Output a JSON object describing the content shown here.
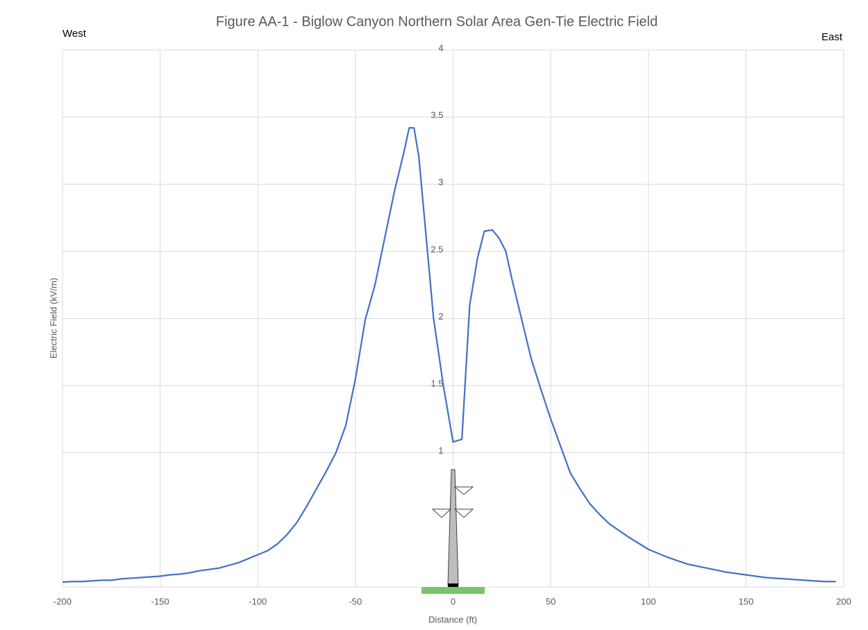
{
  "chart_data": {
    "type": "line",
    "title": "Figure AA-1 - Biglow Canyon Northern Solar Area Gen-Tie Electric Field",
    "x_label": "Distance (ft)",
    "y_label": "Electric Field (kV/m)",
    "annotations": [
      "West",
      "East"
    ],
    "x": [
      -200,
      -195,
      -190,
      -185,
      -180,
      -175,
      -170,
      -165,
      -160,
      -155,
      -150,
      -145,
      -140,
      -135,
      -130,
      -125,
      -120,
      -115,
      -110,
      -105,
      -100,
      -95,
      -90,
      -85,
      -80,
      -75,
      -70,
      -65,
      -60,
      -55,
      -50,
      -45,
      -40,
      -35,
      -30,
      -25,
      -22.5,
      -20,
      -17.5,
      -15,
      -10,
      -5,
      0,
      4.5,
      8.5,
      12.5,
      16,
      20,
      23.5,
      27,
      30,
      35,
      40,
      45,
      50,
      55,
      60,
      65,
      70,
      75,
      80,
      90,
      100,
      110,
      120,
      130,
      140,
      150,
      160,
      170,
      180,
      190,
      196
    ],
    "series": [
      {
        "name": "Electric Field",
        "color": "#4472c4",
        "values": [
          0.036,
          0.04,
          0.04,
          0.045,
          0.05,
          0.05,
          0.06,
          0.065,
          0.07,
          0.075,
          0.08,
          0.09,
          0.095,
          0.105,
          0.12,
          0.13,
          0.14,
          0.16,
          0.18,
          0.21,
          0.24,
          0.27,
          0.32,
          0.39,
          0.48,
          0.6,
          0.73,
          0.86,
          1.0,
          1.2,
          1.55,
          1.99,
          2.25,
          2.6,
          2.95,
          3.25,
          3.42,
          3.42,
          3.2,
          2.8,
          2.0,
          1.5,
          1.08,
          1.1,
          2.1,
          2.45,
          2.65,
          2.66,
          2.6,
          2.5,
          2.3,
          2.0,
          1.7,
          1.47,
          1.25,
          1.05,
          0.85,
          0.73,
          0.62,
          0.54,
          0.47,
          0.37,
          0.28,
          0.22,
          0.17,
          0.14,
          0.11,
          0.09,
          0.07,
          0.06,
          0.05,
          0.04,
          0.04
        ]
      }
    ],
    "xlim": [
      -200,
      200
    ],
    "xticks": [
      -200,
      -150,
      -100,
      -50,
      0,
      50,
      100,
      150,
      200
    ],
    "ylim": [
      0,
      4
    ],
    "yticks": [
      1,
      1.5,
      2,
      2.5,
      3,
      3.5,
      4
    ],
    "grid": true
  }
}
